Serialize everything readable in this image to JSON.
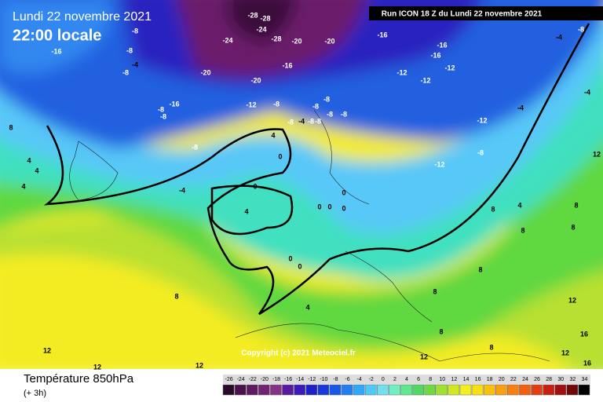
{
  "header": {
    "date": "Lundi 22 novembre 2021",
    "time": "22:00 locale",
    "run": "Run ICON 18 Z du Lundi 22 novembre 2021"
  },
  "copyright": "Copyright (c) 2021 Meteociel.fr",
  "footer": {
    "variable": "Température 850hPa",
    "step": "(+ 3h)"
  },
  "colorbar": {
    "ticks": [
      -26,
      -24,
      -22,
      -20,
      -18,
      -16,
      -14,
      -12,
      -10,
      -8,
      -6,
      -4,
      -2,
      0,
      2,
      4,
      6,
      8,
      10,
      12,
      14,
      16,
      18,
      20,
      22,
      24,
      26,
      28,
      30,
      32,
      34
    ],
    "colors": [
      "#2a0a2a",
      "#4a124a",
      "#5e1a5e",
      "#722472",
      "#863286",
      "#5a1aa0",
      "#3a1ab8",
      "#2020c8",
      "#1838d8",
      "#1858e8",
      "#2080f0",
      "#30a8f8",
      "#50c8f8",
      "#70e0f0",
      "#70f0c0",
      "#60e890",
      "#50d860",
      "#70d840",
      "#a0e030",
      "#d0e820",
      "#f0f020",
      "#f8e010",
      "#f8c010",
      "#f8a010",
      "#f88010",
      "#f06010",
      "#e04010",
      "#c82010",
      "#a01010",
      "#700808",
      "#000000"
    ]
  },
  "contour_labels": [
    -28,
    -28,
    -24,
    -24,
    -28,
    -20,
    -20,
    -16,
    -20,
    -20,
    -16,
    -16,
    -8,
    -8,
    -4,
    -8,
    -12,
    -12,
    -16,
    -16,
    -12,
    -4,
    -8,
    -4,
    -12,
    -8,
    -16,
    -8,
    -8,
    -8,
    -8,
    -8,
    -4,
    -8,
    -8,
    -8,
    -8,
    -12,
    -4,
    -8,
    -12,
    -8,
    8,
    4,
    0,
    0,
    -4,
    4,
    0,
    0,
    0,
    0,
    8,
    8,
    8,
    8,
    4,
    8,
    12,
    16,
    16,
    12,
    12,
    12,
    8,
    8,
    12,
    12,
    12,
    4,
    4,
    4,
    0,
    0,
    8,
    8,
    4
  ]
}
